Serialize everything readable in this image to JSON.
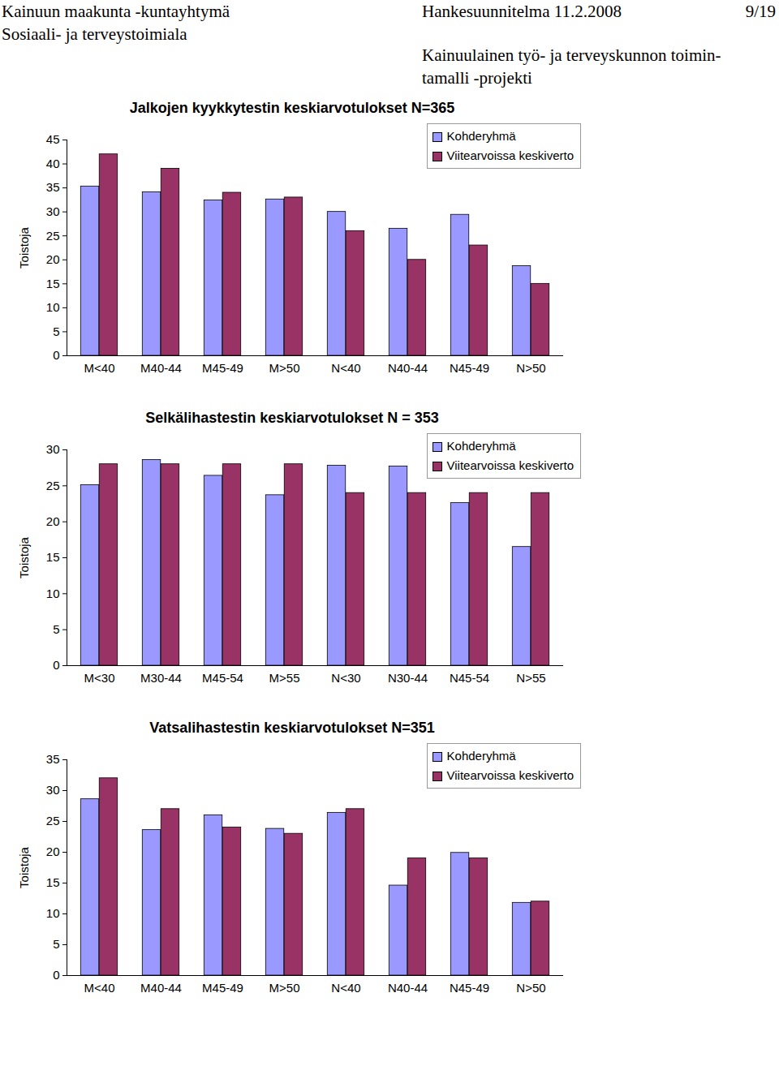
{
  "header": {
    "left": [
      "Kainuun maakunta -kuntayhtymä",
      "Sosiaali- ja terveystoimiala"
    ],
    "date_line": "Hankesuunnitelma 11.2.2008",
    "page": "9/19",
    "project": [
      "Kainuulainen työ- ja terveyskunnon toimin-",
      "tamalli -projekti"
    ]
  },
  "chart_data": [
    {
      "type": "bar",
      "title": "Jalkojen kyykkytestin keskiarvotulokset N=365",
      "ylabel": "Toistoja",
      "categories": [
        "M<40",
        "M40-44",
        "M45-49",
        "M>50",
        "N<40",
        "N40-44",
        "N45-49",
        "N>50"
      ],
      "series": [
        {
          "name": "Kohderyhmä",
          "color": "#9999ff",
          "values": [
            35.3,
            34.1,
            32.4,
            32.6,
            30.0,
            26.5,
            29.4,
            18.7
          ]
        },
        {
          "name": "Viitearvoissa keskiverto",
          "color": "#993366",
          "values": [
            42,
            39,
            34,
            33,
            26,
            20,
            23,
            15
          ]
        }
      ],
      "ylim": [
        0,
        45
      ],
      "yticks": [
        0,
        5,
        10,
        15,
        20,
        25,
        30,
        35,
        40,
        45
      ],
      "grid": false,
      "legend": "upper right"
    },
    {
      "type": "bar",
      "title": "Selkälihastestin keskiarvotulokset N = 353",
      "ylabel": "Toistoja",
      "categories": [
        "M<30",
        "M30-44",
        "M45-54",
        "M>55",
        "N<30",
        "N30-44",
        "N45-54",
        "N>55"
      ],
      "series": [
        {
          "name": "Kohderyhmä",
          "color": "#9999ff",
          "values": [
            25.1,
            28.6,
            26.4,
            23.7,
            27.8,
            27.7,
            22.6,
            16.5
          ]
        },
        {
          "name": "Viitearvoissa keskiverto",
          "color": "#993366",
          "values": [
            28,
            28,
            28,
            28,
            24,
            24,
            24,
            24
          ]
        }
      ],
      "ylim": [
        0,
        30
      ],
      "yticks": [
        0,
        5,
        10,
        15,
        20,
        25,
        30
      ],
      "grid": false,
      "legend": "upper right"
    },
    {
      "type": "bar",
      "title": "Vatsalihastestin keskiarvotulokset N=351",
      "ylabel": "Toistoja",
      "categories": [
        "M<40",
        "M40-44",
        "M45-49",
        "M>50",
        "N<40",
        "N40-44",
        "N45-49",
        "N>50"
      ],
      "series": [
        {
          "name": "Kohderyhmä",
          "color": "#9999ff",
          "values": [
            28.6,
            23.6,
            26.0,
            23.8,
            26.4,
            14.6,
            19.9,
            11.8
          ]
        },
        {
          "name": "Viitearvoissa keskiverto",
          "color": "#993366",
          "values": [
            32,
            27,
            24,
            23,
            27,
            19,
            19,
            12
          ]
        }
      ],
      "ylim": [
        0,
        35
      ],
      "yticks": [
        0,
        5,
        10,
        15,
        20,
        25,
        30,
        35
      ],
      "grid": false,
      "legend": "upper right"
    }
  ]
}
